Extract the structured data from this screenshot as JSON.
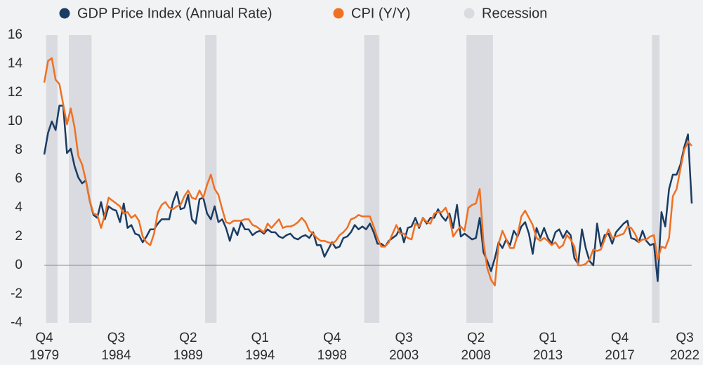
{
  "chart_data": {
    "type": "line",
    "categories": [
      "Q4 1979",
      null,
      null,
      null,
      null,
      null,
      null,
      null,
      null,
      null,
      null,
      null,
      null,
      null,
      null,
      null,
      null,
      null,
      null,
      "Q3 1984",
      null,
      null,
      null,
      null,
      null,
      null,
      null,
      null,
      null,
      null,
      null,
      null,
      null,
      null,
      null,
      null,
      null,
      null,
      "Q2 1989",
      null,
      null,
      null,
      null,
      null,
      null,
      null,
      null,
      null,
      null,
      null,
      null,
      null,
      null,
      null,
      null,
      null,
      null,
      "Q1 1994",
      null,
      null,
      null,
      null,
      null,
      null,
      null,
      null,
      null,
      null,
      null,
      null,
      null,
      null,
      null,
      null,
      null,
      null,
      "Q4 1998",
      null,
      null,
      null,
      null,
      null,
      null,
      null,
      null,
      null,
      null,
      null,
      null,
      null,
      null,
      null,
      null,
      null,
      null,
      "Q3 2003",
      null,
      null,
      null,
      null,
      null,
      null,
      null,
      null,
      null,
      null,
      null,
      null,
      null,
      null,
      null,
      null,
      null,
      null,
      "Q2 2008",
      null,
      null,
      null,
      null,
      null,
      null,
      null,
      null,
      null,
      null,
      null,
      null,
      null,
      null,
      null,
      null,
      null,
      null,
      "Q1 2013",
      null,
      null,
      null,
      null,
      null,
      null,
      null,
      null,
      null,
      null,
      null,
      null,
      null,
      null,
      null,
      null,
      null,
      null,
      "Q4 2017",
      null,
      null,
      null,
      null,
      null,
      null,
      null,
      null,
      null,
      null,
      null,
      null,
      null,
      null,
      null,
      null,
      null,
      null,
      "Q3 2022"
    ],
    "series": [
      {
        "name": "GDP Price Index (Annual Rate)",
        "color": "#1b3c63",
        "values": [
          7.7,
          9.2,
          10.0,
          9.4,
          11.1,
          11.1,
          7.8,
          8.1,
          6.9,
          6.1,
          5.7,
          5.9,
          4.5,
          3.5,
          3.3,
          4.4,
          3.2,
          4.1,
          3.9,
          3.8,
          3.0,
          4.3,
          2.6,
          2.8,
          2.2,
          2.1,
          1.6,
          2.0,
          2.5,
          2.5,
          2.9,
          3.2,
          3.2,
          3.2,
          4.4,
          5.1,
          3.9,
          4.0,
          4.9,
          3.2,
          2.9,
          4.6,
          4.7,
          3.6,
          3.2,
          4.1,
          3.0,
          3.2,
          2.6,
          1.7,
          2.6,
          2.1,
          3.0,
          2.5,
          2.5,
          2.1,
          2.3,
          2.4,
          2.2,
          2.5,
          2.3,
          2.3,
          2.0,
          1.9,
          2.1,
          2.2,
          1.9,
          1.8,
          2.0,
          2.1,
          1.9,
          2.3,
          1.4,
          1.4,
          0.6,
          1.1,
          1.6,
          1.2,
          1.3,
          1.9,
          2.0,
          2.3,
          2.8,
          2.5,
          2.7,
          2.5,
          2.9,
          2.3,
          1.5,
          1.5,
          1.3,
          1.7,
          1.9,
          2.1,
          2.6,
          1.6,
          2.6,
          2.7,
          3.3,
          2.6,
          3.3,
          2.9,
          3.3,
          3.3,
          3.9,
          3.4,
          3.1,
          3.6,
          2.6,
          4.2,
          2.0,
          2.2,
          2.0,
          1.8,
          1.9,
          3.3,
          0.9,
          0.3,
          -0.4,
          0.5,
          1.6,
          1.2,
          1.8,
          1.4,
          2.4,
          2.0,
          2.7,
          3.0,
          2.2,
          0.8,
          2.6,
          1.9,
          2.6,
          1.9,
          1.5,
          2.3,
          2.5,
          1.9,
          2.4,
          2.1,
          0.5,
          0.1,
          2.5,
          1.2,
          0.3,
          0.0,
          2.9,
          1.3,
          2.1,
          2.2,
          1.5,
          2.3,
          2.6,
          2.9,
          3.1,
          1.9,
          1.8,
          1.6,
          2.4,
          1.7,
          1.4,
          1.5,
          -1.1,
          3.7,
          2.7,
          5.3,
          6.3,
          6.3,
          7.0,
          8.2,
          9.1,
          4.3
        ]
      },
      {
        "name": "CPI (Y/Y)",
        "color": "#f07023",
        "values": [
          12.7,
          14.2,
          14.4,
          12.9,
          12.6,
          11.2,
          9.8,
          10.9,
          9.6,
          7.6,
          7.0,
          5.9,
          4.5,
          3.6,
          3.5,
          2.6,
          3.5,
          4.7,
          4.5,
          4.3,
          4.1,
          3.6,
          3.7,
          3.3,
          3.5,
          3.1,
          2.0,
          1.6,
          1.4,
          2.2,
          3.7,
          4.2,
          4.4,
          4.0,
          3.9,
          4.1,
          4.2,
          4.8,
          5.2,
          4.7,
          4.6,
          5.2,
          4.7,
          5.6,
          6.3,
          5.3,
          4.9,
          3.9,
          3.0,
          2.9,
          3.1,
          3.1,
          3.1,
          3.2,
          3.2,
          2.8,
          2.7,
          2.5,
          2.3,
          2.9,
          2.6,
          2.9,
          3.2,
          2.6,
          2.7,
          2.7,
          2.8,
          3.0,
          3.3,
          3.0,
          2.4,
          2.2,
          1.9,
          1.7,
          1.7,
          1.6,
          1.5,
          1.7,
          2.1,
          2.3,
          2.6,
          3.2,
          3.3,
          3.5,
          3.4,
          3.4,
          3.4,
          2.7,
          1.9,
          1.3,
          1.3,
          1.6,
          2.2,
          2.8,
          2.2,
          2.2,
          1.9,
          1.8,
          2.9,
          2.7,
          3.3,
          3.0,
          2.9,
          3.6,
          3.7,
          3.7,
          4.0,
          3.3,
          2.0,
          2.4,
          2.7,
          2.4,
          4.0,
          4.2,
          4.3,
          5.3,
          1.6,
          -0.2,
          -1.0,
          -1.4,
          1.5,
          2.4,
          1.8,
          1.2,
          1.2,
          2.1,
          3.4,
          3.8,
          3.3,
          2.8,
          1.9,
          1.7,
          1.9,
          1.7,
          1.4,
          1.6,
          1.2,
          1.4,
          2.1,
          1.8,
          1.3,
          0.0,
          0.0,
          0.1,
          0.4,
          1.1,
          1.0,
          1.1,
          1.8,
          2.5,
          1.9,
          2.0,
          2.1,
          2.2,
          2.7,
          2.6,
          2.2,
          1.6,
          1.8,
          1.8,
          2.0,
          2.1,
          0.4,
          1.3,
          1.2,
          1.9,
          4.8,
          5.3,
          6.7,
          8.0,
          8.6,
          8.3
        ]
      }
    ],
    "recession_name": "Recession",
    "recession_color": "#d9dbe0",
    "recessions": [
      [
        1,
        3
      ],
      [
        7,
        12
      ],
      [
        43,
        45
      ],
      [
        85,
        88
      ],
      [
        112,
        118
      ],
      [
        161,
        162
      ]
    ],
    "ylim": [
      -4,
      16
    ],
    "yticks": [
      -4,
      -2,
      0,
      2,
      4,
      6,
      8,
      10,
      12,
      14,
      16
    ],
    "grid": false
  }
}
